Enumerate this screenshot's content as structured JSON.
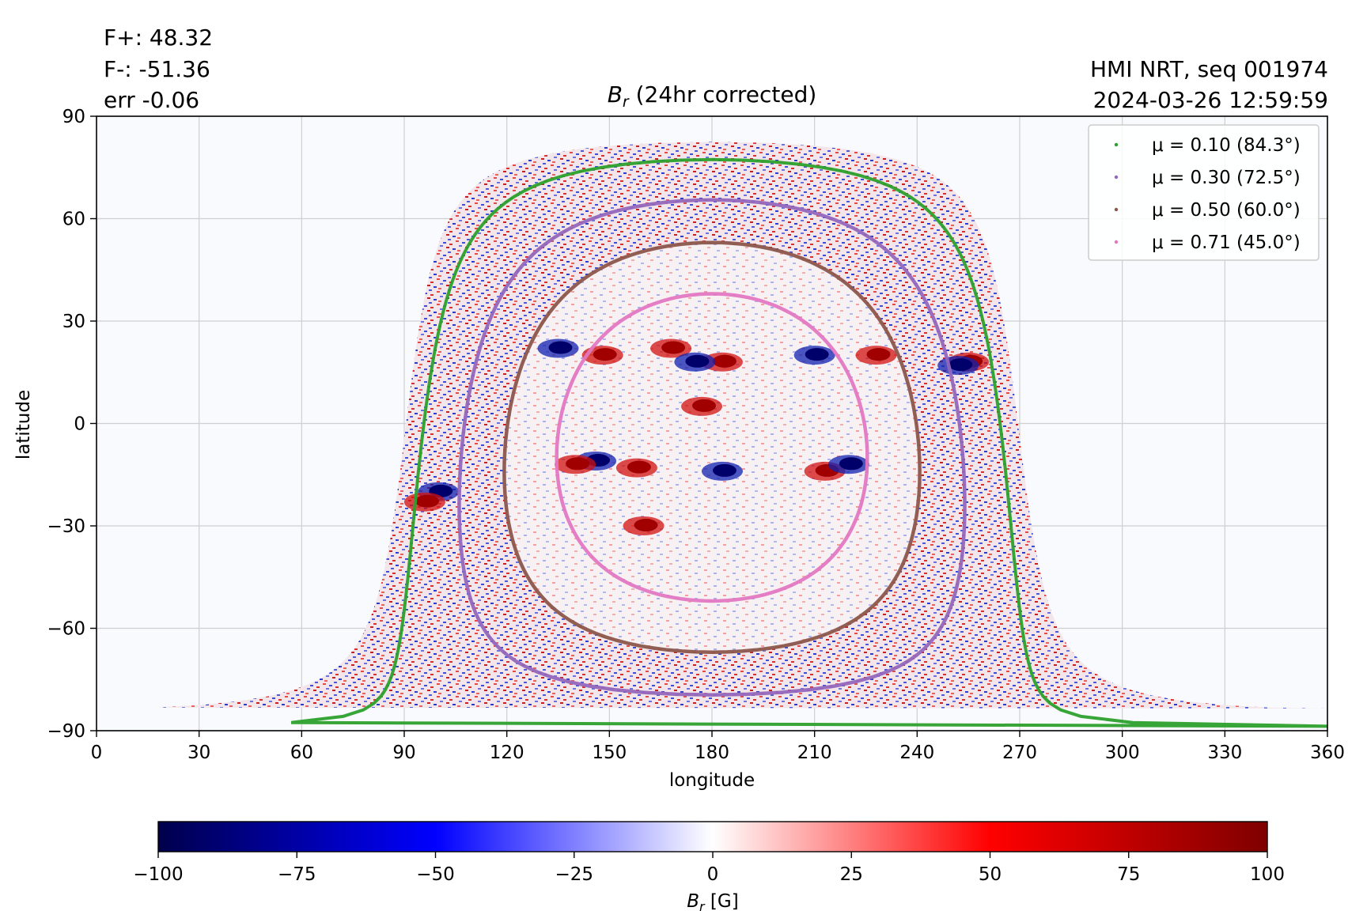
{
  "header": {
    "flux_pos": "F+: 48.32",
    "flux_neg": "F-: -51.36",
    "err": "err -0.06",
    "source": "HMI NRT, seq 001974",
    "timestamp": "2024-03-26 12:59:59"
  },
  "chart_data": [
    {
      "type": "heatmap",
      "title_var": "B",
      "title_sub": "r",
      "title_rest": " (24hr corrected)",
      "xlabel": "longitude",
      "ylabel": "latitude",
      "xlim": [
        0,
        360
      ],
      "ylim": [
        -90,
        90
      ],
      "xticks": [
        "0",
        "30",
        "60",
        "90",
        "120",
        "150",
        "180",
        "210",
        "240",
        "270",
        "300",
        "330",
        "360"
      ],
      "yticks": [
        "90",
        "60",
        "30",
        "0",
        "−30",
        "−60",
        "−90"
      ],
      "grid": true,
      "legend_position": "top-right",
      "disk_center_lon": 180,
      "disk_center_lat": -7,
      "series": [
        {
          "name": "μ = 0.10 (84.3°)",
          "mu": 0.1,
          "angle_deg": 84.3,
          "color": "#2ca02c"
        },
        {
          "name": "μ = 0.30 (72.5°)",
          "mu": 0.3,
          "angle_deg": 72.5,
          "color": "#9467bd"
        },
        {
          "name": "μ = 0.50 (60.0°)",
          "mu": 0.5,
          "angle_deg": 60.0,
          "color": "#8c564b"
        },
        {
          "name": "μ = 0.71 (45.0°)",
          "mu": 0.71,
          "angle_deg": 45.0,
          "color": "#e377c2"
        }
      ],
      "active_regions": [
        {
          "lon": 148,
          "lat": 20,
          "sign": 1
        },
        {
          "lon": 135,
          "lat": 22,
          "sign": -1
        },
        {
          "lon": 168,
          "lat": 22,
          "sign": 1
        },
        {
          "lon": 183,
          "lat": 18,
          "sign": 1
        },
        {
          "lon": 175,
          "lat": 18,
          "sign": -1
        },
        {
          "lon": 210,
          "lat": 20,
          "sign": -1
        },
        {
          "lon": 228,
          "lat": 20,
          "sign": 1
        },
        {
          "lon": 255,
          "lat": 18,
          "sign": 1
        },
        {
          "lon": 252,
          "lat": 17,
          "sign": -1
        },
        {
          "lon": 213,
          "lat": -14,
          "sign": 1
        },
        {
          "lon": 220,
          "lat": -12,
          "sign": -1
        },
        {
          "lon": 183,
          "lat": -14,
          "sign": -1
        },
        {
          "lon": 146,
          "lat": -11,
          "sign": -1
        },
        {
          "lon": 140,
          "lat": -12,
          "sign": 1
        },
        {
          "lon": 158,
          "lat": -13,
          "sign": 1
        },
        {
          "lon": 177,
          "lat": 5,
          "sign": 1
        },
        {
          "lon": 160,
          "lat": -30,
          "sign": 1
        },
        {
          "lon": 100,
          "lat": -20,
          "sign": -1
        },
        {
          "lon": 96,
          "lat": -23,
          "sign": 1
        }
      ]
    },
    {
      "type": "colorbar",
      "label_var": "B",
      "label_sub": "r",
      "label_rest": " [G]",
      "vmin": -100,
      "vmax": 100,
      "ticks": [
        "−100",
        "−75",
        "−50",
        "−25",
        "0",
        "25",
        "50",
        "75",
        "100"
      ],
      "colors": [
        "#00004c",
        "#0000ff",
        "#ffffff",
        "#ff0000",
        "#7f0000"
      ]
    }
  ]
}
